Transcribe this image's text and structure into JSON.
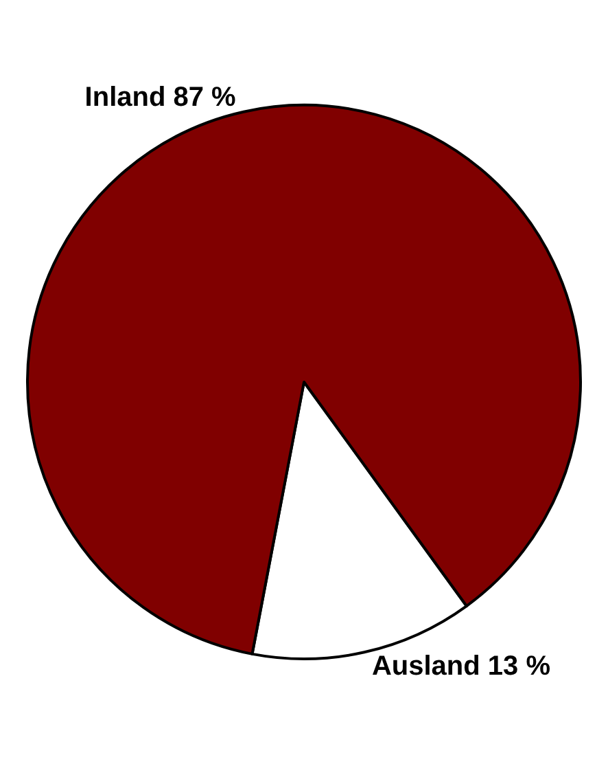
{
  "chart_data": {
    "type": "pie",
    "categories": [
      "Ausland",
      "Inland"
    ],
    "values": [
      13,
      87
    ],
    "colors": [
      "#ffffff",
      "#800000"
    ],
    "value_labels": [
      "13 %",
      "87 %"
    ],
    "legend": false
  }
}
